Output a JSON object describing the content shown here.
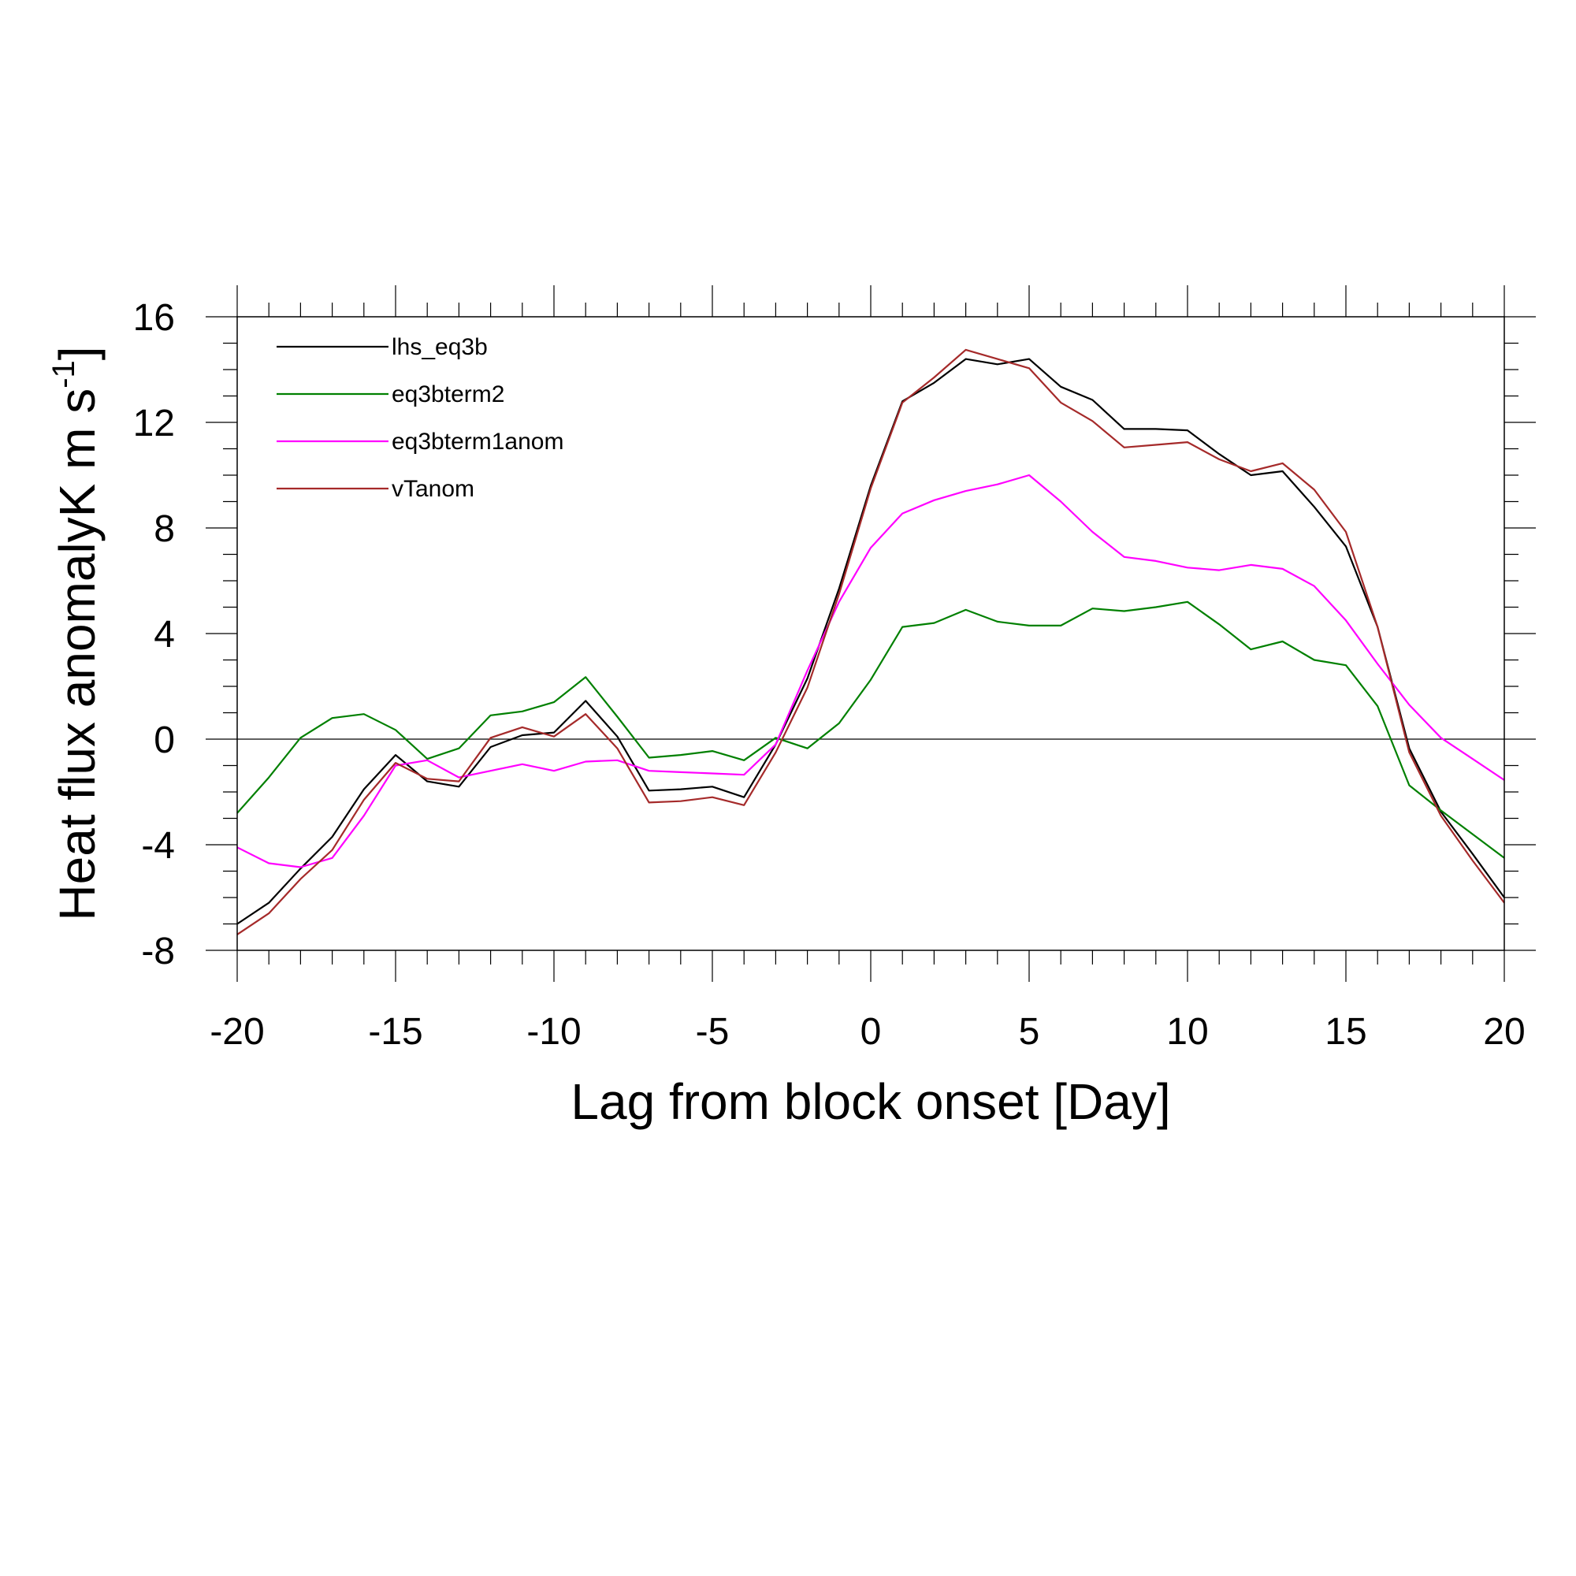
{
  "chart_data": {
    "type": "line",
    "xlabel": "Lag from block onset [Day]",
    "ylabel": "Heat flux anomalyK m s",
    "ylabel_superscript": "-1",
    "ylabel_suffix": "]",
    "xlim": [
      -20,
      20
    ],
    "ylim": [
      -8,
      16
    ],
    "x_ticks": [
      -20,
      -15,
      -10,
      -5,
      0,
      5,
      10,
      15,
      20
    ],
    "x_tick_labels": [
      "-20",
      "-15",
      "-10",
      "-5",
      "0",
      "5",
      "10",
      "15",
      "20"
    ],
    "y_ticks": [
      -8,
      -4,
      0,
      4,
      8,
      12,
      16
    ],
    "y_tick_labels": [
      "-8",
      "-4",
      "0",
      "4",
      "8",
      "12",
      "16"
    ],
    "zero_line": true,
    "grid": false,
    "legend_position": "top-left",
    "x": [
      -20,
      -19,
      -18,
      -17,
      -16,
      -15,
      -14,
      -13,
      -12,
      -11,
      -10,
      -9,
      -8,
      -7,
      -6,
      -5,
      -4,
      -3,
      -2,
      -1,
      0,
      1,
      2,
      3,
      4,
      5,
      6,
      7,
      8,
      9,
      10,
      11,
      12,
      13,
      14,
      15,
      16,
      17,
      18,
      19,
      20
    ],
    "series": [
      {
        "name": "lhs_eq3b",
        "color": "#000000",
        "values": [
          -7.0,
          -6.2,
          -4.9,
          -3.7,
          -1.9,
          -0.6,
          -1.6,
          -1.8,
          -0.3,
          0.15,
          0.25,
          1.45,
          0.1,
          -1.95,
          -1.9,
          -1.8,
          -2.2,
          -0.2,
          2.3,
          5.7,
          9.6,
          12.8,
          13.5,
          14.4,
          14.2,
          14.4,
          13.35,
          12.85,
          11.75,
          11.75,
          11.7,
          10.8,
          10.0,
          10.15,
          8.8,
          7.3,
          4.25,
          -0.35,
          -2.75,
          -4.35,
          -6.0
        ]
      },
      {
        "name": "eq3bterm2",
        "color": "#008000",
        "values": [
          -2.8,
          -1.45,
          0.05,
          0.8,
          0.95,
          0.35,
          -0.75,
          -0.35,
          0.9,
          1.05,
          1.4,
          2.35,
          0.85,
          -0.7,
          -0.6,
          -0.45,
          -0.8,
          0.05,
          -0.35,
          0.6,
          2.25,
          4.25,
          4.4,
          4.9,
          4.45,
          4.3,
          4.3,
          4.95,
          4.85,
          5.0,
          5.2,
          4.35,
          3.4,
          3.7,
          3.0,
          2.8,
          1.25,
          -1.75,
          -2.7,
          -3.6,
          -4.5
        ]
      },
      {
        "name": "eq3bterm1anom",
        "color": "#ff00ff",
        "values": [
          -4.1,
          -4.7,
          -4.85,
          -4.5,
          -2.9,
          -1.0,
          -0.8,
          -1.45,
          -1.2,
          -0.95,
          -1.2,
          -0.85,
          -0.8,
          -1.2,
          -1.25,
          -1.3,
          -1.35,
          -0.2,
          2.6,
          5.2,
          7.25,
          8.55,
          9.05,
          9.4,
          9.65,
          10.0,
          9.0,
          7.85,
          6.9,
          6.75,
          6.5,
          6.4,
          6.6,
          6.45,
          5.8,
          4.5,
          2.85,
          1.3,
          0.05,
          -0.75,
          -1.55
        ]
      },
      {
        "name": "vTanom",
        "color": "#a52a2a",
        "values": [
          -7.4,
          -6.6,
          -5.3,
          -4.2,
          -2.3,
          -0.9,
          -1.5,
          -1.6,
          0.05,
          0.45,
          0.1,
          0.95,
          -0.35,
          -2.4,
          -2.35,
          -2.2,
          -2.5,
          -0.5,
          1.95,
          5.5,
          9.5,
          12.75,
          13.7,
          14.75,
          14.4,
          14.05,
          12.75,
          12.05,
          11.05,
          11.15,
          11.25,
          10.6,
          10.15,
          10.45,
          9.45,
          7.85,
          4.25,
          -0.5,
          -2.9,
          -4.6,
          -6.2
        ]
      }
    ]
  }
}
